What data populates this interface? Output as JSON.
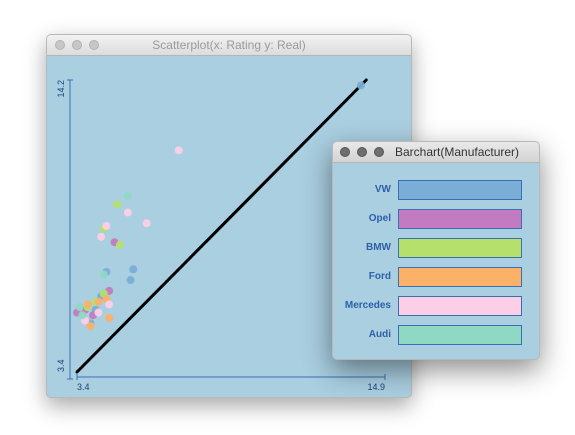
{
  "scatter_window": {
    "title": "Scatterplot(x: Rating y: Real)"
  },
  "bar_window": {
    "title": "Barchart(Manufacturer)"
  },
  "colors": {
    "background": "#a9cfe1",
    "axis": "#3a6fb5",
    "diagonal": "#000000",
    "VW": "#7aaed6",
    "Opel": "#c27bc0",
    "BMW": "#b4e06b",
    "Ford": "#fbb167",
    "Mercedes": "#fccfe7",
    "Audi": "#8fd8c4"
  },
  "chart_data": [
    {
      "type": "scatter",
      "title": "Scatterplot(x: Rating y: Real)",
      "xlabel": "",
      "ylabel": "",
      "xlim": [
        3.4,
        14.9
      ],
      "ylim": [
        3.4,
        14.2
      ],
      "x_ticks": [
        "3.4",
        "14.9"
      ],
      "y_ticks": [
        "3.4",
        "14.2"
      ],
      "reference_line": "y = x",
      "grid": false,
      "series": [
        {
          "name": "VW",
          "points": [
            [
              3.9,
              5.2
            ],
            [
              4.1,
              5.7
            ],
            [
              4.3,
              6.2
            ],
            [
              4.4,
              6.3
            ],
            [
              5.4,
              6.8
            ],
            [
              5.5,
              7.2
            ],
            [
              4.5,
              7.1
            ],
            [
              14.0,
              14.0
            ]
          ]
        },
        {
          "name": "Opel",
          "points": [
            [
              3.4,
              5.6
            ],
            [
              3.7,
              5.7
            ],
            [
              4.0,
              5.5
            ],
            [
              4.6,
              6.4
            ],
            [
              4.8,
              8.2
            ]
          ]
        },
        {
          "name": "BMW",
          "points": [
            [
              3.8,
              5.8
            ],
            [
              4.1,
              6.0
            ],
            [
              4.4,
              6.3
            ],
            [
              4.4,
              8.7
            ],
            [
              4.9,
              9.6
            ],
            [
              5.0,
              8.1
            ]
          ]
        },
        {
          "name": "Ford",
          "points": [
            [
              3.9,
              5.1
            ],
            [
              3.8,
              5.9
            ],
            [
              4.2,
              6.0
            ],
            [
              4.5,
              6.1
            ],
            [
              4.6,
              5.4
            ]
          ]
        },
        {
          "name": "Mercedes",
          "points": [
            [
              3.7,
              5.3
            ],
            [
              4.2,
              5.6
            ],
            [
              4.6,
              5.9
            ],
            [
              4.3,
              8.4
            ],
            [
              4.5,
              8.8
            ],
            [
              5.3,
              9.3
            ],
            [
              6.0,
              8.9
            ],
            [
              7.2,
              11.6
            ]
          ]
        },
        {
          "name": "Audi",
          "points": [
            [
              3.6,
              5.5
            ],
            [
              3.5,
              5.8
            ],
            [
              4.4,
              7.0
            ],
            [
              5.3,
              9.9
            ]
          ]
        }
      ]
    },
    {
      "type": "bar",
      "title": "Barchart(Manufacturer)",
      "categories": [
        "VW",
        "Opel",
        "BMW",
        "Ford",
        "Mercedes",
        "Audi"
      ]
    }
  ]
}
